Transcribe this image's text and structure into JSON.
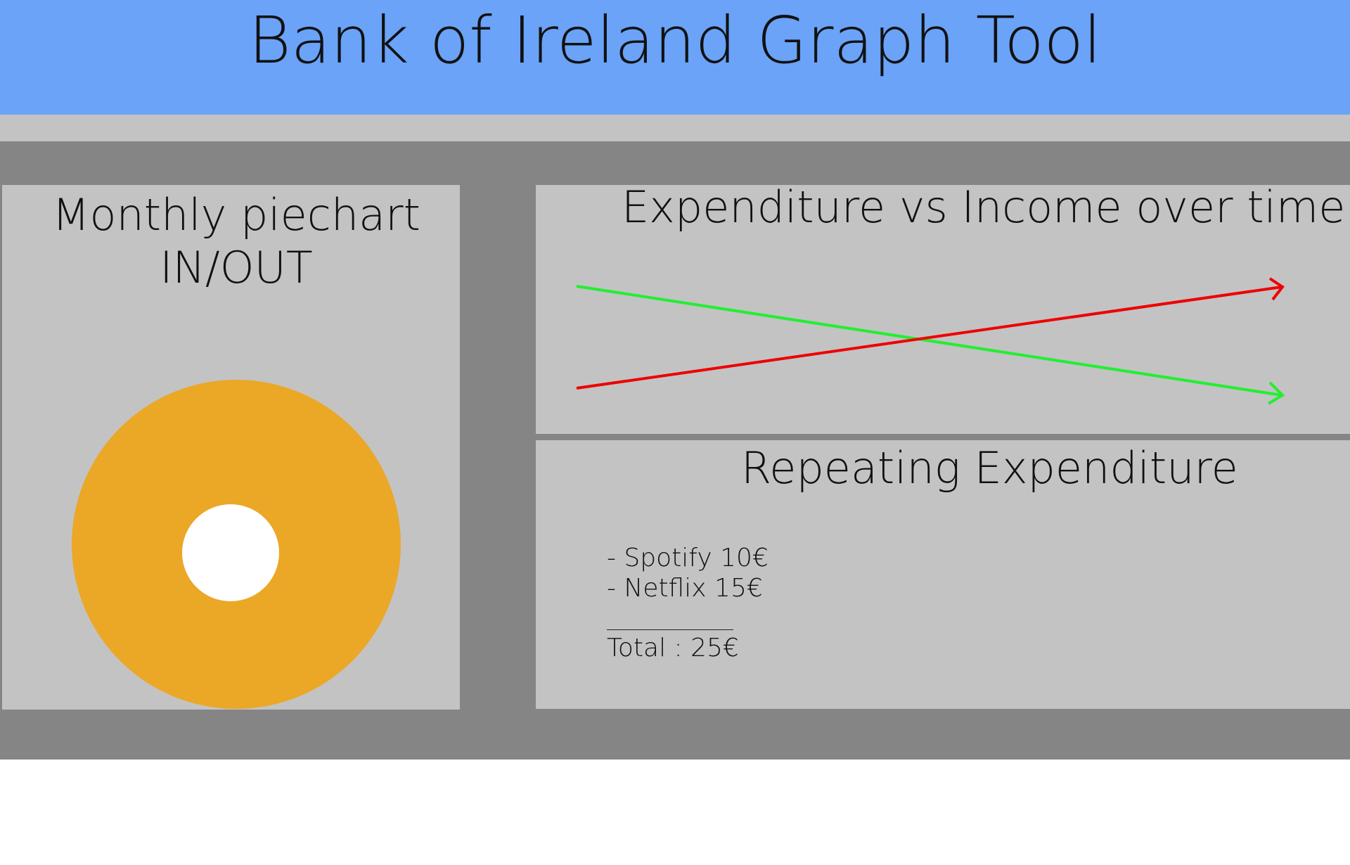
{
  "header": {
    "title": "Bank of Ireland Graph Tool"
  },
  "pie_panel": {
    "title_line1": "Monthly piechart",
    "title_line2": "IN/OUT",
    "ring_color": "#eba726"
  },
  "line_panel": {
    "title": "Expenditure vs Income over time",
    "income_color": "#22ee33",
    "expenditure_color": "#ee0000"
  },
  "repeating_panel": {
    "title": "Repeating Expenditure",
    "items": [
      "- Spotify 10€",
      "- Netflix 15€"
    ],
    "total": "Total : 25€"
  },
  "colors": {
    "header": "#6aa3f8",
    "panel": "#c3c3c3",
    "frame": "#858585"
  }
}
